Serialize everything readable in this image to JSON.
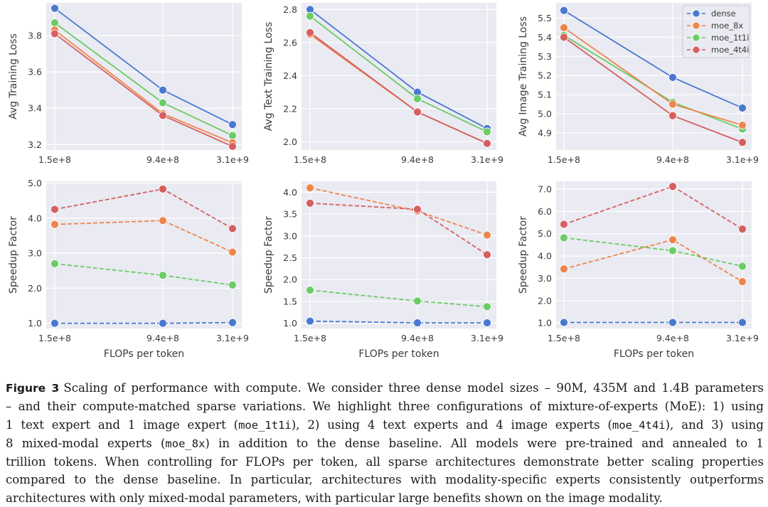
{
  "chart_data": [
    {
      "id": "avg-training-loss",
      "type": "line",
      "x": [
        "1.5e+8",
        "9.4e+8",
        "3.1e+9"
      ],
      "xlabel": "",
      "ylabel": "Avg Training Loss",
      "ylim": [
        3.17,
        3.98
      ],
      "yticks": [
        3.2,
        3.4,
        3.6,
        3.8
      ],
      "ytick_labels": [
        "3.2",
        "3.4",
        "3.6",
        "3.8"
      ],
      "linestyle": "solid",
      "grid": true,
      "legend": null,
      "series": [
        {
          "name": "dense",
          "values": [
            3.95,
            3.5,
            3.31
          ]
        },
        {
          "name": "moe_8x",
          "values": [
            3.83,
            3.37,
            3.21
          ]
        },
        {
          "name": "moe_1t1i",
          "values": [
            3.87,
            3.43,
            3.25
          ]
        },
        {
          "name": "moe_4t4i",
          "values": [
            3.81,
            3.36,
            3.19
          ]
        }
      ]
    },
    {
      "id": "avg-text-training-loss",
      "type": "line",
      "x": [
        "1.5e+8",
        "9.4e+8",
        "3.1e+9"
      ],
      "xlabel": "",
      "ylabel": "Avg Text Training Loss",
      "ylim": [
        1.95,
        2.84
      ],
      "yticks": [
        2.0,
        2.2,
        2.4,
        2.6,
        2.8
      ],
      "ytick_labels": [
        "2.0",
        "2.2",
        "2.4",
        "2.6",
        "2.8"
      ],
      "linestyle": "solid",
      "grid": true,
      "legend": null,
      "series": [
        {
          "name": "dense",
          "values": [
            2.8,
            2.3,
            2.08
          ]
        },
        {
          "name": "moe_8x",
          "values": [
            2.65,
            2.18,
            1.99
          ]
        },
        {
          "name": "moe_1t1i",
          "values": [
            2.76,
            2.26,
            2.06
          ]
        },
        {
          "name": "moe_4t4i",
          "values": [
            2.66,
            2.18,
            1.99
          ]
        }
      ]
    },
    {
      "id": "avg-image-training-loss",
      "type": "line",
      "x": [
        "1.5e+8",
        "9.4e+8",
        "3.1e+9"
      ],
      "xlabel": "",
      "ylabel": "Avg Image Training Loss",
      "ylim": [
        4.81,
        5.58
      ],
      "yticks": [
        4.9,
        5.0,
        5.1,
        5.2,
        5.3,
        5.4,
        5.5
      ],
      "ytick_labels": [
        "4.9",
        "5.0",
        "5.1",
        "5.2",
        "5.3",
        "5.4",
        "5.5"
      ],
      "linestyle": "solid",
      "grid": true,
      "legend": "top-right",
      "series": [
        {
          "name": "dense",
          "values": [
            5.54,
            5.19,
            5.03
          ]
        },
        {
          "name": "moe_8x",
          "values": [
            5.45,
            5.05,
            4.94
          ]
        },
        {
          "name": "moe_1t1i",
          "values": [
            5.41,
            5.06,
            4.92
          ]
        },
        {
          "name": "moe_4t4i",
          "values": [
            5.4,
            4.99,
            4.85
          ]
        }
      ]
    },
    {
      "id": "speedup-overall",
      "type": "line",
      "x": [
        "1.5e+8",
        "9.4e+8",
        "3.1e+9"
      ],
      "xlabel": "FLOPs per token",
      "ylabel": "Speedup Factor",
      "ylim": [
        0.85,
        5.05
      ],
      "yticks": [
        1.0,
        2.0,
        3.0,
        4.0,
        5.0
      ],
      "ytick_labels": [
        "1.0",
        "2.0",
        "3.0",
        "4.0",
        "5.0"
      ],
      "linestyle": "dashed",
      "grid": true,
      "legend": null,
      "series": [
        {
          "name": "dense",
          "values": [
            1.0,
            1.0,
            1.02
          ]
        },
        {
          "name": "moe_8x",
          "values": [
            3.82,
            3.93,
            3.03
          ]
        },
        {
          "name": "moe_1t1i",
          "values": [
            2.7,
            2.37,
            2.09
          ]
        },
        {
          "name": "moe_4t4i",
          "values": [
            4.25,
            4.83,
            3.7
          ]
        }
      ]
    },
    {
      "id": "speedup-text",
      "type": "line",
      "x": [
        "1.5e+8",
        "9.4e+8",
        "3.1e+9"
      ],
      "xlabel": "FLOPs per token",
      "ylabel": "Speedup Factor",
      "ylim": [
        0.88,
        4.25
      ],
      "yticks": [
        1.0,
        1.5,
        2.0,
        2.5,
        3.0,
        3.5,
        4.0
      ],
      "ytick_labels": [
        "1.0",
        "1.5",
        "2.0",
        "2.5",
        "3.0",
        "3.5",
        "4.0"
      ],
      "linestyle": "dashed",
      "grid": true,
      "legend": null,
      "series": [
        {
          "name": "dense",
          "values": [
            1.05,
            1.01,
            1.01
          ]
        },
        {
          "name": "moe_8x",
          "values": [
            4.1,
            3.57,
            3.02
          ]
        },
        {
          "name": "moe_1t1i",
          "values": [
            1.76,
            1.51,
            1.38
          ]
        },
        {
          "name": "moe_4t4i",
          "values": [
            3.75,
            3.61,
            2.57
          ]
        }
      ]
    },
    {
      "id": "speedup-image",
      "type": "line",
      "x": [
        "1.5e+8",
        "9.4e+8",
        "3.1e+9"
      ],
      "xlabel": "FLOPs per token",
      "ylabel": "Speedup Factor",
      "ylim": [
        0.75,
        7.35
      ],
      "yticks": [
        1.0,
        2.0,
        3.0,
        4.0,
        5.0,
        6.0,
        7.0
      ],
      "ytick_labels": [
        "1.0",
        "2.0",
        "3.0",
        "4.0",
        "5.0",
        "6.0",
        "7.0"
      ],
      "linestyle": "dashed",
      "grid": true,
      "legend": null,
      "series": [
        {
          "name": "dense",
          "values": [
            1.02,
            1.02,
            1.02
          ]
        },
        {
          "name": "moe_8x",
          "values": [
            3.42,
            4.73,
            2.85
          ]
        },
        {
          "name": "moe_1t1i",
          "values": [
            4.82,
            4.24,
            3.54
          ]
        },
        {
          "name": "moe_4t4i",
          "values": [
            5.42,
            7.12,
            5.21
          ]
        }
      ]
    }
  ],
  "series_colors": {
    "dense": "#4878d0",
    "moe_8x": "#ee854a",
    "moe_1t1i": "#6acc64",
    "moe_4t4i": "#d65f5f"
  },
  "plot_background": "#eaeaf2",
  "legend": {
    "entries": [
      "dense",
      "moe_8x",
      "moe_1t1i",
      "moe_4t4i"
    ]
  },
  "caption": {
    "label": "Figure 3",
    "lines": [
      [
        {
          "t": "Scaling of performance with compute. We consider three dense model sizes – 90M, 435M and 1.4B parameters"
        }
      ],
      [
        {
          "t": "– and their compute-matched sparse variations. We highlight three configurations of mixture-of-experts (MoE): 1) using"
        }
      ],
      [
        {
          "t": "1 text expert and 1 image expert ("
        },
        {
          "c": "moe_1t1i"
        },
        {
          "t": "), 2) using 4 text experts and 4 image experts ("
        },
        {
          "c": "moe_4t4i"
        },
        {
          "t": "), and 3) using"
        }
      ],
      [
        {
          "t": "8 mixed-modal experts ("
        },
        {
          "c": "moe_8x"
        },
        {
          "t": ") in addition to the dense baseline. All models were pre-trained and annealed to 1"
        }
      ],
      [
        {
          "t": "trillion tokens. When controlling for FLOPs per token, all sparse architectures demonstrate better scaling properties"
        }
      ],
      [
        {
          "t": "compared to the dense baseline. In particular, architectures with modality-specific experts consistently outperforms"
        }
      ],
      [
        {
          "t": "architectures with only mixed-modal parameters, with particular large benefits shown on the image modality."
        }
      ]
    ]
  }
}
